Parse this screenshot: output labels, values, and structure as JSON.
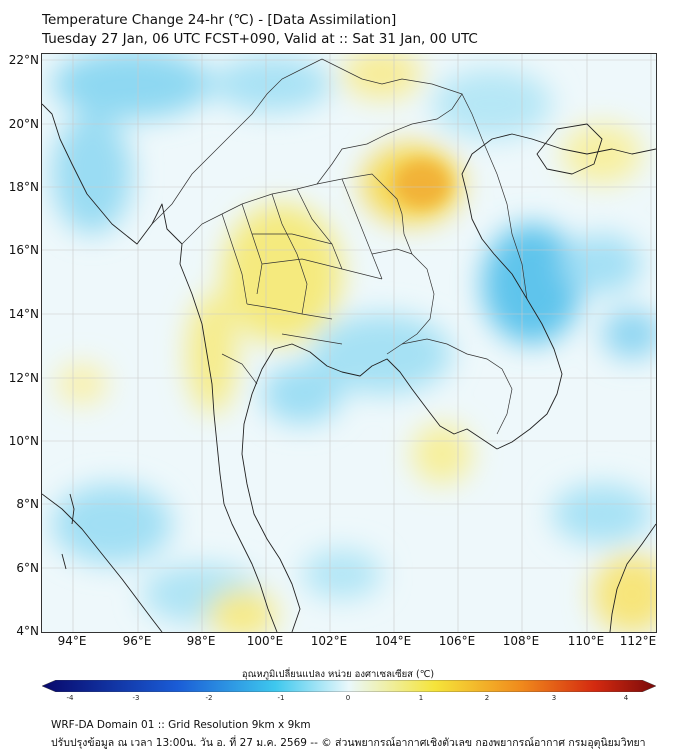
{
  "title_line1": "Temperature Change 24-hr (℃) - [Data Assimilation]",
  "title_line2": "Tuesday 27 Jan, 06 UTC FCST+090, Valid at :: Sat 31 Jan, 00 UTC",
  "y_axis_labels": [
    "22°N",
    "20°N",
    "18°N",
    "16°N",
    "14°N",
    "12°N",
    "10°N",
    "8°N",
    "6°N",
    "4°N"
  ],
  "x_axis_labels": [
    "94°E",
    "96°E",
    "98°E",
    "100°E",
    "102°E",
    "104°E",
    "106°E",
    "108°E",
    "110°E",
    "112°E"
  ],
  "colorbar": {
    "title": "อุณหภูมิเปลี่ยนแปลง หน่วย องศาเซลเซียส (℃)",
    "tick_labels": [
      "-4",
      "-3",
      "-2",
      "-1",
      "0",
      "1",
      "2",
      "3",
      "4"
    ],
    "range": [
      -4,
      4
    ],
    "colors": {
      "min": "#08086b",
      "blue": "#1a5cd6",
      "cyan": "#3ec8ee",
      "pale": "#eaf8fb",
      "yellow": "#f5e43a",
      "orange": "#f08a1c",
      "red": "#d42a10",
      "max": "#7a0a0a"
    }
  },
  "footer_line1": "WRF-DA Domain 01 :: Grid Resolution 9km x 9km",
  "footer_line2": "ปรับปรุงข้อมูล ณ เวลา 13:00น. วัน อ. ที่ 27 ม.ค. 2569 -- © ส่วนพยากรณ์อากาศเชิงตัวเลข กองพยากรณ์อากาศ กรมอุตุนิยมวิทยา"
}
